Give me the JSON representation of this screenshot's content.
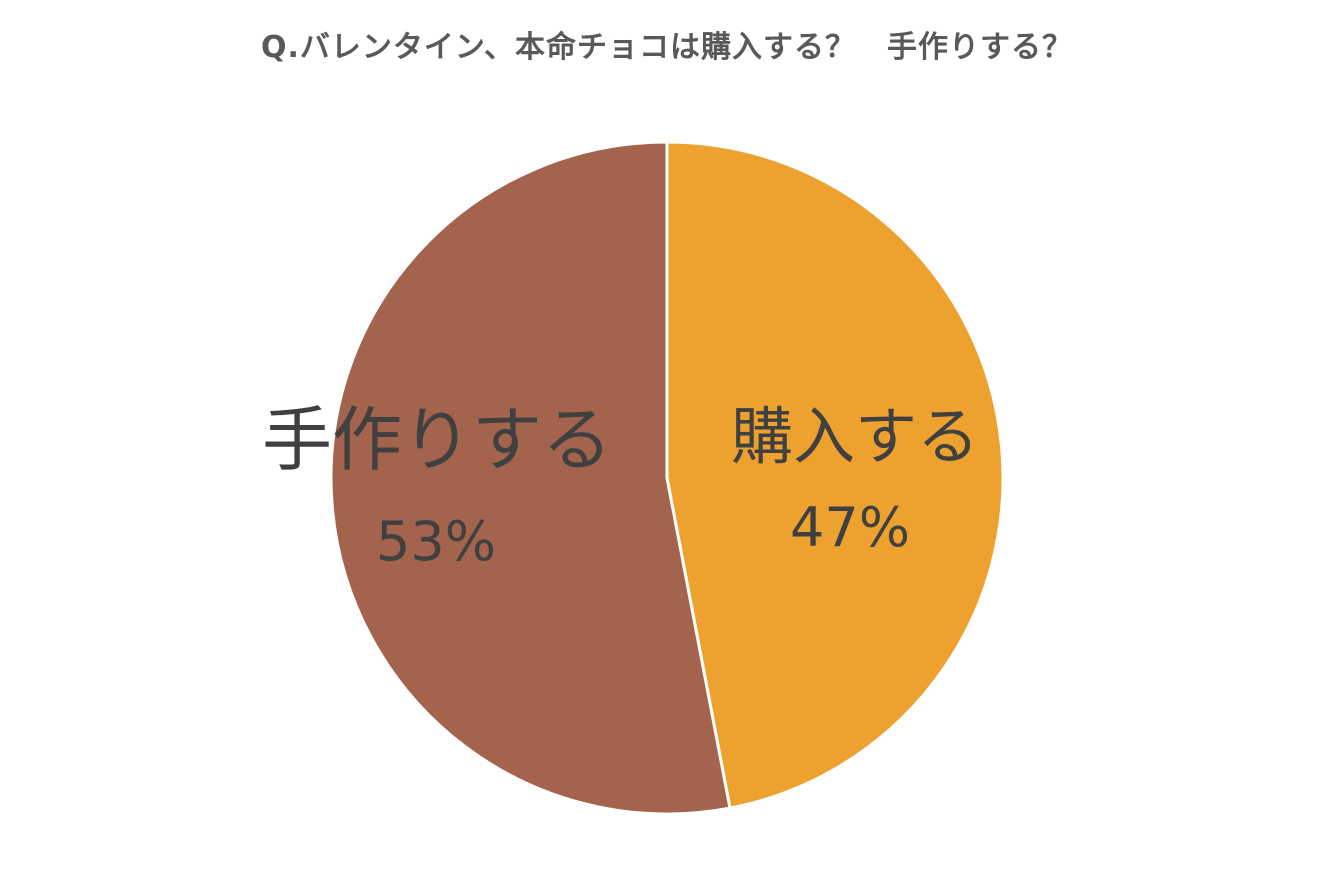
{
  "chart_data": {
    "type": "pie",
    "title": "Q.バレンタイン、本命チョコは購入する？　手作りする？",
    "slices": [
      {
        "label": "購入する",
        "value": 47,
        "value_label": "47%",
        "color": "#EDA22F"
      },
      {
        "label": "手作りする",
        "value": 53,
        "value_label": "53%",
        "color": "#A3634D"
      }
    ],
    "start_angle": "12 o'clock",
    "direction": "clockwise",
    "legend": "none",
    "data_labels": "inside"
  }
}
